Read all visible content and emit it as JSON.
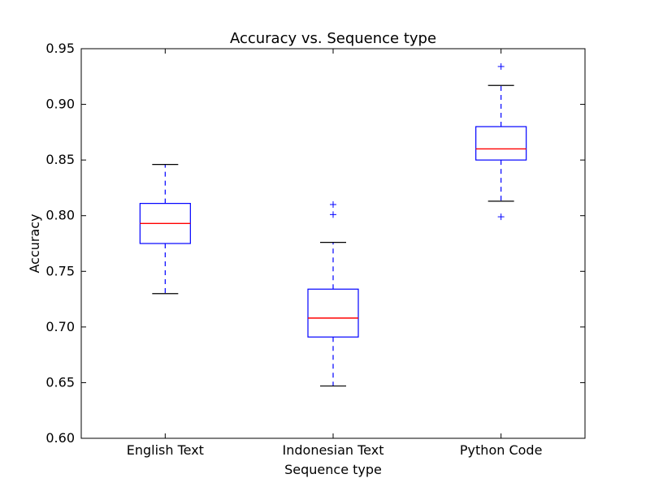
{
  "chart_data": {
    "type": "box",
    "title": "Accuracy vs. Sequence type",
    "xlabel": "Sequence type",
    "ylabel": "Accuracy",
    "ylim": [
      0.6,
      0.95
    ],
    "yticks": [
      "0.60",
      "0.65",
      "0.70",
      "0.75",
      "0.80",
      "0.85",
      "0.90",
      "0.95"
    ],
    "grid": false,
    "categories": [
      "English Text",
      "Indonesian Text",
      "Python Code"
    ],
    "boxes": [
      {
        "whisker_low": 0.73,
        "q1": 0.775,
        "median": 0.793,
        "q3": 0.811,
        "whisker_high": 0.846,
        "outliers": []
      },
      {
        "whisker_low": 0.647,
        "q1": 0.691,
        "median": 0.708,
        "q3": 0.734,
        "whisker_high": 0.776,
        "outliers": [
          0.801,
          0.81
        ]
      },
      {
        "whisker_low": 0.813,
        "q1": 0.85,
        "median": 0.86,
        "q3": 0.88,
        "whisker_high": 0.917,
        "outliers": [
          0.799,
          0.934
        ]
      }
    ],
    "colors": {
      "box": "#0000ff",
      "median": "#ff0000",
      "whisker_cap": "#000000",
      "outlier": "#0000ff"
    }
  }
}
